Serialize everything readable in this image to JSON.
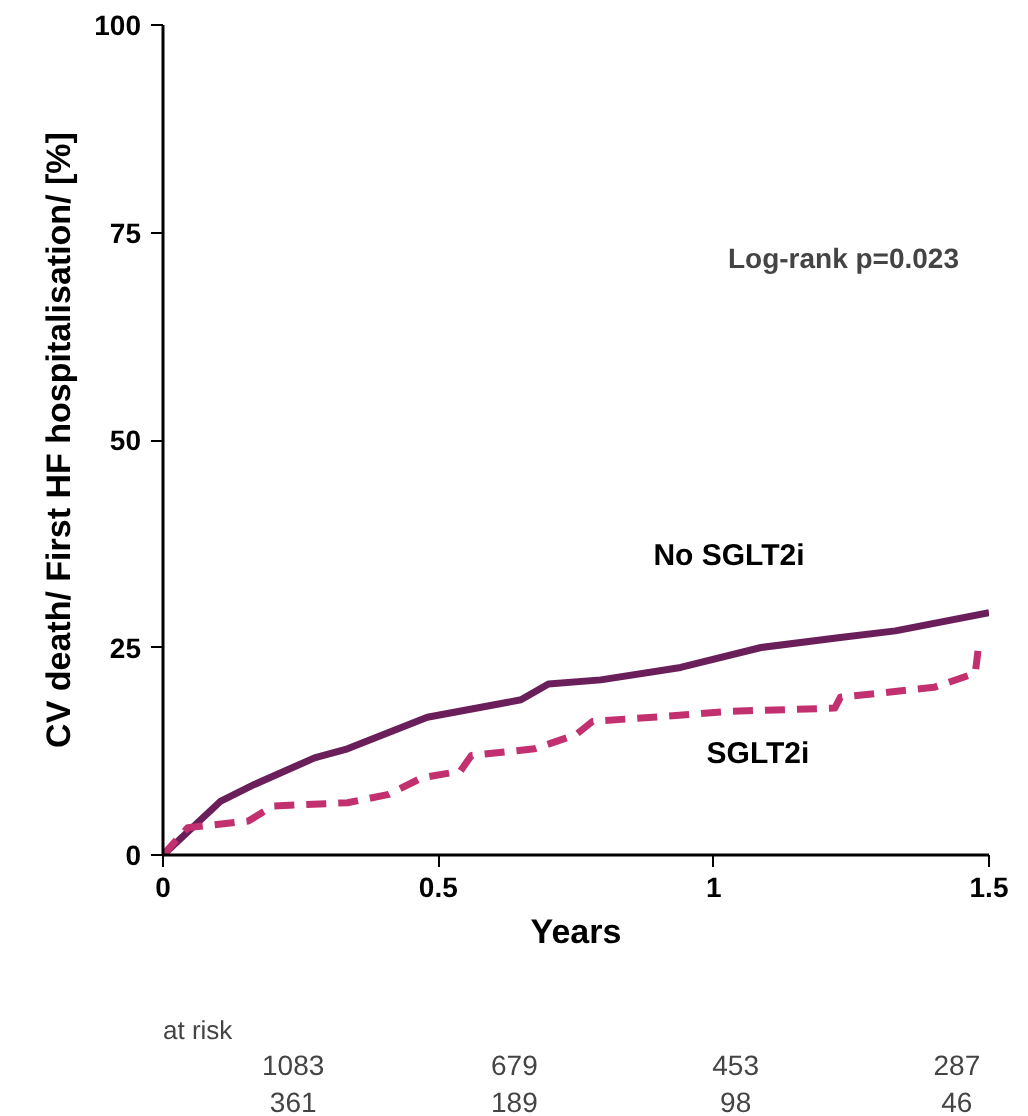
{
  "chart_data": {
    "type": "line",
    "xlabel": "Years",
    "ylabel": "CV death/ First HF hospitalisation/ [%]",
    "xlim": [
      0,
      1.5
    ],
    "ylim": [
      0,
      100
    ],
    "xticks": [
      0,
      0.5,
      1,
      1.5
    ],
    "yticks": [
      0,
      25,
      50,
      75,
      100
    ],
    "grid": false,
    "series": [
      {
        "name": "No SGLT2i",
        "color": "#6b1f5a",
        "line_style": "solid",
        "x": [
          0,
          0.105,
          0.166,
          0.275,
          0.335,
          0.48,
          0.65,
          0.7,
          0.795,
          0.94,
          1.086,
          1.23,
          1.33,
          1.5
        ],
        "values": [
          0,
          6.5,
          8.5,
          11.7,
          12.8,
          16.6,
          18.7,
          20.6,
          21.1,
          22.6,
          25,
          26.2,
          27,
          29.2
        ]
      },
      {
        "name": "SGLT2i",
        "color": "#c2306f",
        "line_style": "dashed",
        "x": [
          0,
          0.045,
          0.155,
          0.2,
          0.335,
          0.41,
          0.47,
          0.54,
          0.56,
          0.675,
          0.75,
          0.78,
          0.89,
          1.025,
          1.22,
          1.23,
          1.4,
          1.475,
          1.48
        ],
        "values": [
          0,
          3.3,
          4.1,
          5.9,
          6.3,
          7.3,
          9.3,
          10.1,
          12.0,
          12.8,
          14.5,
          16.1,
          16.6,
          17.3,
          17.7,
          19.0,
          20.2,
          21.9,
          24.6
        ]
      }
    ],
    "annotations": [
      "Log-rank p=0.023",
      "at risk",
      "1083",
      "679",
      "453",
      "287",
      "361",
      "189",
      "98",
      "46"
    ]
  }
}
